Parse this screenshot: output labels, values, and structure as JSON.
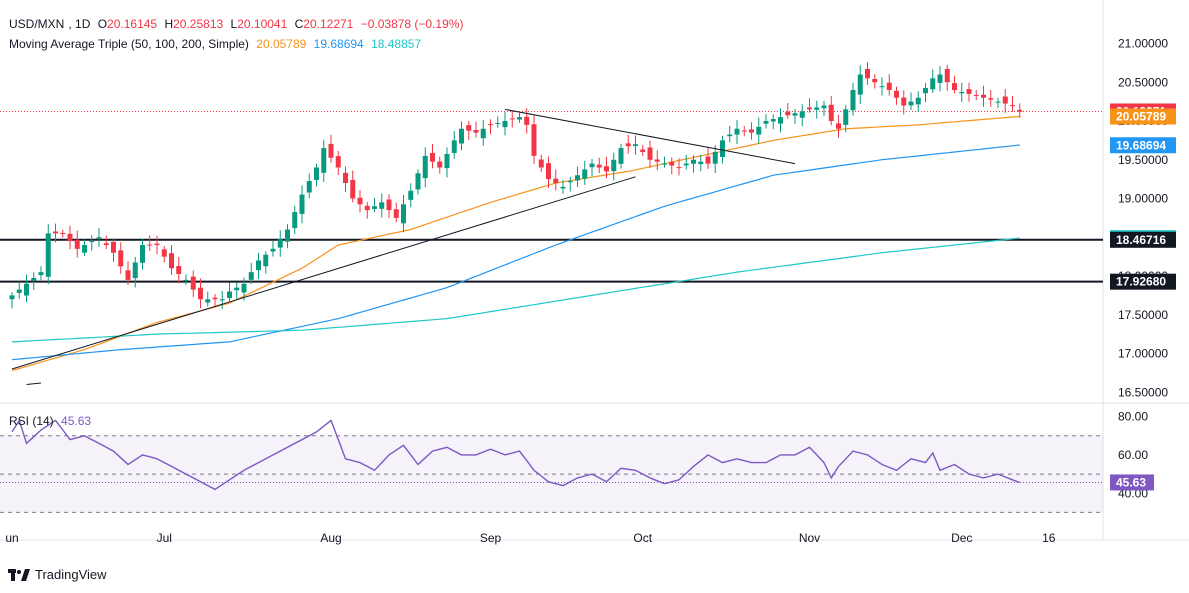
{
  "header": {
    "symbol": "USD/MXN",
    "interval": "1D",
    "open_label": "O",
    "open": "20.16145",
    "high_label": "H",
    "high": "20.25813",
    "low_label": "L",
    "low": "20.10041",
    "close_label": "C",
    "close": "20.12271",
    "change": "−0.03878 (−0.19%)"
  },
  "ma_legend": {
    "title": "Moving Average Triple (50, 100, 200, Simple)",
    "ma50": "20.05789",
    "ma100": "19.68694",
    "ma200": "18.48857"
  },
  "rsi_legend": {
    "title": "RSI (14)",
    "value": "45.63"
  },
  "watermark": "TradingView",
  "colors": {
    "up": "#089981",
    "down": "#f23645",
    "ma50": "#f7931a",
    "ma100": "#2196f3",
    "ma200": "#1fc7c7",
    "rsi": "#7e57c2",
    "dark": "#131722",
    "text_muted": "#2a2e39"
  },
  "chart_data": [
    {
      "type": "candlestick",
      "title": "USD/MXN, 1D",
      "y_range": [
        16.4,
        21.2
      ],
      "y_ticks": [
        "21.00000",
        "20.50000",
        "20.00000",
        "19.50000",
        "19.00000",
        "18.50000",
        "18.00000",
        "17.50000",
        "17.00000",
        "16.50000"
      ],
      "y_tick_values": [
        21.0,
        20.5,
        20.0,
        19.5,
        19.0,
        18.5,
        18.0,
        17.5,
        17.0,
        16.5
      ],
      "x_ticks": [
        "Jun",
        "Jul",
        "Aug",
        "Sep",
        "Oct",
        "Nov",
        "Dec",
        "16"
      ],
      "x_tick_bar_index": [
        0,
        21,
        44,
        66,
        87,
        110,
        131,
        143
      ],
      "x_tick_display": [
        "un",
        "Jul",
        "Aug",
        "Sep",
        "Oct",
        "Nov",
        "Dec",
        "16"
      ],
      "price_labels": [
        {
          "text": "20.12271",
          "value": 20.12271,
          "color": "#f23645"
        },
        {
          "text": "20.05789",
          "value": 20.05789,
          "color": "#f7931a"
        },
        {
          "text": "19.68694",
          "value": 19.68694,
          "color": "#2196f3"
        },
        {
          "text": "18.48857",
          "value": 18.48857,
          "color": "#1fc7c7"
        },
        {
          "text": "18.46716",
          "value": 18.46716,
          "color": "#131722"
        },
        {
          "text": "17.92680",
          "value": 17.9268,
          "color": "#131722"
        }
      ],
      "horizontal_levels": [
        18.46716,
        17.9268
      ],
      "current_price": 20.12271,
      "trendlines": [
        {
          "from": {
            "bar": 0,
            "value": 16.8
          },
          "to": {
            "bar": 86,
            "value": 19.28
          }
        },
        {
          "from": {
            "bar": 68,
            "value": 20.15
          },
          "to": {
            "bar": 108,
            "value": 19.45
          }
        },
        {
          "from": {
            "bar": 2,
            "value": 16.6
          },
          "to": {
            "bar": 4,
            "value": 16.62
          }
        }
      ],
      "candle_count": 140,
      "candle_close_anchors": [
        [
          0,
          17.75
        ],
        [
          2,
          17.9
        ],
        [
          4,
          18.05
        ],
        [
          5,
          18.55
        ],
        [
          7,
          18.55
        ],
        [
          9,
          18.35
        ],
        [
          12,
          18.5
        ],
        [
          14,
          18.3
        ],
        [
          16,
          17.95
        ],
        [
          18,
          18.4
        ],
        [
          20,
          18.4
        ],
        [
          22,
          18.1
        ],
        [
          24,
          17.95
        ],
        [
          26,
          17.7
        ],
        [
          29,
          17.7
        ],
        [
          30,
          17.8
        ],
        [
          32,
          17.9
        ],
        [
          34,
          18.2
        ],
        [
          36,
          18.35
        ],
        [
          38,
          18.6
        ],
        [
          40,
          19.05
        ],
        [
          42,
          19.4
        ],
        [
          43,
          19.65
        ],
        [
          45,
          19.4
        ],
        [
          47,
          19.0
        ],
        [
          49,
          18.85
        ],
        [
          51,
          18.95
        ],
        [
          53,
          18.75
        ],
        [
          55,
          19.1
        ],
        [
          57,
          19.55
        ],
        [
          59,
          19.4
        ],
        [
          61,
          19.75
        ],
        [
          62,
          19.9
        ],
        [
          64,
          19.85
        ],
        [
          66,
          19.95
        ],
        [
          68,
          20.0
        ],
        [
          70,
          20.05
        ],
        [
          71,
          19.95
        ],
        [
          72,
          19.55
        ],
        [
          74,
          19.25
        ],
        [
          76,
          19.15
        ],
        [
          78,
          19.3
        ],
        [
          80,
          19.45
        ],
        [
          82,
          19.35
        ],
        [
          84,
          19.65
        ],
        [
          86,
          19.7
        ],
        [
          88,
          19.5
        ],
        [
          90,
          19.45
        ],
        [
          92,
          19.4
        ],
        [
          94,
          19.5
        ],
        [
          96,
          19.45
        ],
        [
          97,
          19.6
        ],
        [
          98,
          19.75
        ],
        [
          100,
          19.9
        ],
        [
          102,
          19.85
        ],
        [
          104,
          20.0
        ],
        [
          106,
          20.05
        ],
        [
          108,
          20.1
        ],
        [
          110,
          20.15
        ],
        [
          112,
          20.2
        ],
        [
          113,
          20.0
        ],
        [
          114,
          19.9
        ],
        [
          116,
          20.4
        ],
        [
          117,
          20.6
        ],
        [
          119,
          20.5
        ],
        [
          121,
          20.4
        ],
        [
          123,
          20.2
        ],
        [
          125,
          20.3
        ],
        [
          127,
          20.55
        ],
        [
          128,
          20.6
        ],
        [
          130,
          20.4
        ],
        [
          132,
          20.35
        ],
        [
          134,
          20.3
        ],
        [
          136,
          20.25
        ],
        [
          138,
          20.2
        ],
        [
          139,
          20.12
        ]
      ],
      "ma_anchors": {
        "ma50": [
          [
            0,
            16.78
          ],
          [
            10,
            17.05
          ],
          [
            20,
            17.4
          ],
          [
            30,
            17.65
          ],
          [
            40,
            18.1
          ],
          [
            45,
            18.4
          ],
          [
            55,
            18.6
          ],
          [
            66,
            18.95
          ],
          [
            75,
            19.2
          ],
          [
            85,
            19.35
          ],
          [
            95,
            19.55
          ],
          [
            105,
            19.75
          ],
          [
            115,
            19.9
          ],
          [
            125,
            19.95
          ],
          [
            139,
            20.06
          ]
        ],
        "ma100": [
          [
            0,
            16.92
          ],
          [
            15,
            17.05
          ],
          [
            30,
            17.15
          ],
          [
            45,
            17.45
          ],
          [
            60,
            17.85
          ],
          [
            75,
            18.4
          ],
          [
            90,
            18.9
          ],
          [
            105,
            19.3
          ],
          [
            120,
            19.5
          ],
          [
            139,
            19.69
          ]
        ],
        "ma200": [
          [
            0,
            17.15
          ],
          [
            20,
            17.25
          ],
          [
            40,
            17.3
          ],
          [
            60,
            17.45
          ],
          [
            80,
            17.75
          ],
          [
            100,
            18.05
          ],
          [
            120,
            18.3
          ],
          [
            139,
            18.49
          ]
        ]
      }
    },
    {
      "type": "line",
      "title": "RSI (14)",
      "y_range": [
        25,
        85
      ],
      "y_ticks": [
        "80.00",
        "60.00",
        "40.00"
      ],
      "y_tick_values": [
        80,
        60,
        40
      ],
      "bands": [
        70,
        50,
        30
      ],
      "current_value": 45.63,
      "value_label": "45.63",
      "series": [
        {
          "anchors": [
            [
              0,
              72
            ],
            [
              1,
              78
            ],
            [
              2,
              66
            ],
            [
              4,
              73
            ],
            [
              6,
              78
            ],
            [
              8,
              68
            ],
            [
              10,
              70
            ],
            [
              12,
              66
            ],
            [
              14,
              62
            ],
            [
              16,
              55
            ],
            [
              18,
              60
            ],
            [
              20,
              58
            ],
            [
              22,
              54
            ],
            [
              24,
              50
            ],
            [
              26,
              46
            ],
            [
              28,
              42
            ],
            [
              30,
              47
            ],
            [
              32,
              52
            ],
            [
              34,
              56
            ],
            [
              36,
              60
            ],
            [
              38,
              64
            ],
            [
              40,
              68
            ],
            [
              42,
              72
            ],
            [
              44,
              78
            ],
            [
              46,
              58
            ],
            [
              48,
              56
            ],
            [
              50,
              52
            ],
            [
              52,
              60
            ],
            [
              54,
              65
            ],
            [
              56,
              55
            ],
            [
              58,
              62
            ],
            [
              60,
              64
            ],
            [
              62,
              60
            ],
            [
              64,
              60
            ],
            [
              66,
              63
            ],
            [
              68,
              60
            ],
            [
              70,
              62
            ],
            [
              72,
              52
            ],
            [
              74,
              46
            ],
            [
              76,
              44
            ],
            [
              78,
              48
            ],
            [
              80,
              50
            ],
            [
              82,
              46
            ],
            [
              84,
              53
            ],
            [
              86,
              52
            ],
            [
              88,
              48
            ],
            [
              90,
              45
            ],
            [
              92,
              47
            ],
            [
              94,
              54
            ],
            [
              96,
              60
            ],
            [
              98,
              56
            ],
            [
              100,
              58
            ],
            [
              102,
              56
            ],
            [
              104,
              56
            ],
            [
              106,
              60
            ],
            [
              108,
              60
            ],
            [
              110,
              64
            ],
            [
              112,
              56
            ],
            [
              113,
              48
            ],
            [
              114,
              54
            ],
            [
              116,
              62
            ],
            [
              118,
              60
            ],
            [
              120,
              55
            ],
            [
              122,
              52
            ],
            [
              124,
              58
            ],
            [
              126,
              56
            ],
            [
              127,
              61
            ],
            [
              128,
              52
            ],
            [
              130,
              55
            ],
            [
              132,
              50
            ],
            [
              134,
              48
            ],
            [
              136,
              50
            ],
            [
              138,
              47
            ],
            [
              139,
              45.63
            ]
          ]
        }
      ]
    }
  ]
}
